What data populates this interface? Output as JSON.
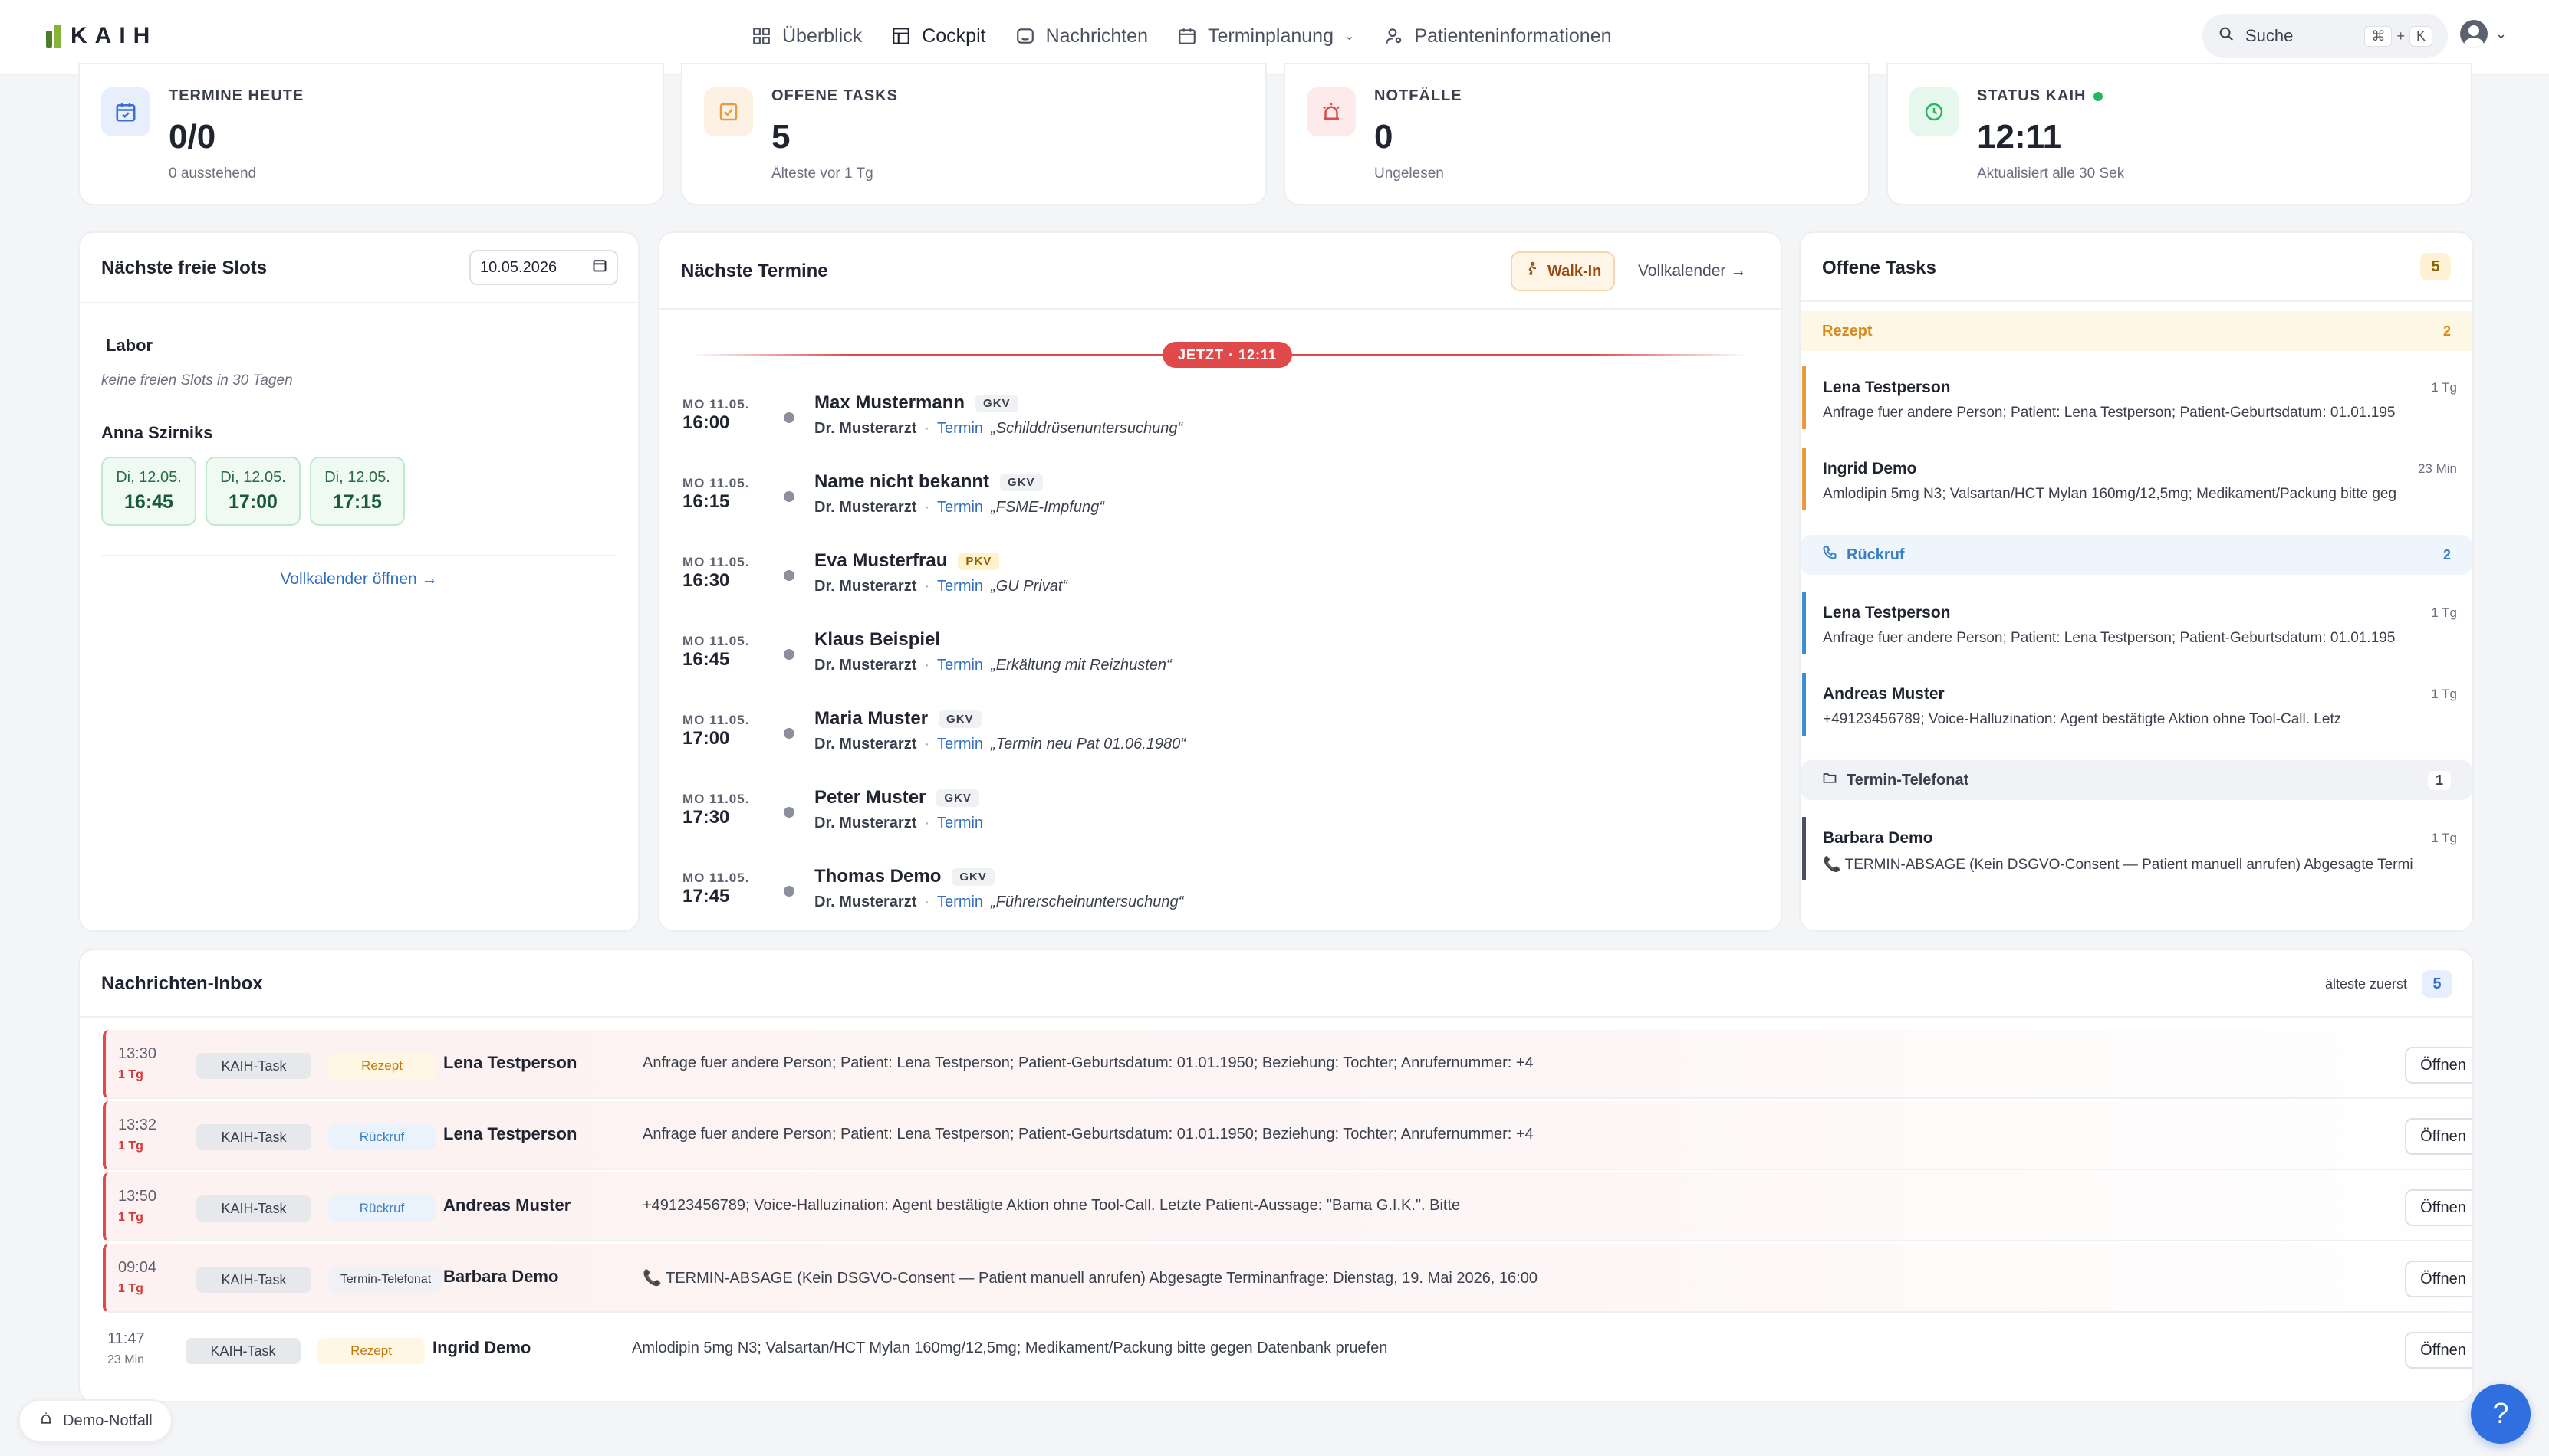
{
  "header": {
    "logo_text": "KAIH",
    "nav": [
      {
        "label": "Überblick",
        "icon": "grid-icon"
      },
      {
        "label": "Cockpit",
        "icon": "dashboard-icon"
      },
      {
        "label": "Nachrichten",
        "icon": "message-icon"
      },
      {
        "label": "Terminplanung",
        "icon": "calendar-icon"
      },
      {
        "label": "Patienteninformationen",
        "icon": "user-icon"
      }
    ],
    "search_placeholder": "Suche",
    "search_kbd": [
      "⌘",
      "+",
      "K"
    ]
  },
  "stats": [
    {
      "label": "TERMINE HEUTE",
      "value": "0/0",
      "sub": "0 ausstehend",
      "icon": "calendar-check-icon",
      "color": "#3a6fd8"
    },
    {
      "label": "OFFENE TASKS",
      "value": "5",
      "sub": "Älteste vor 1 Tg",
      "icon": "checkbox-icon",
      "color": "#e89a3c"
    },
    {
      "label": "NOTFÄLLE",
      "value": "0",
      "sub": "Ungelesen",
      "icon": "alarm-icon",
      "color": "#e04a4a"
    },
    {
      "label": "STATUS KAIH",
      "value": "12:11",
      "sub": "Aktualisiert alle 30 Sek",
      "icon": "clock-icon",
      "color": "#22b860"
    }
  ],
  "slots": {
    "title": "Nächste freie Slots",
    "date": "10.05.2026",
    "group1": {
      "name": "Labor",
      "empty": "keine freien Slots in 30 Tagen"
    },
    "group2": {
      "name": "Anna Szirniks",
      "chips": [
        {
          "day": "Di, 12.05.",
          "time": "16:45"
        },
        {
          "day": "Di, 12.05.",
          "time": "17:00"
        },
        {
          "day": "Di, 12.05.",
          "time": "17:15"
        }
      ]
    },
    "link": "Vollkalender öffnen →"
  },
  "termine": {
    "title": "Nächste Termine",
    "walkin": "Walk-In",
    "vollkalender": "Vollkalender →",
    "now": "JETZT · 12:11",
    "items": [
      {
        "date": "MO 11.05.",
        "time": "16:00",
        "name": "Max Mustermann",
        "ins": "GKV",
        "doc": "Dr. Musterarzt",
        "type": "Termin",
        "reason": "„Schilddrüsenuntersuchung“"
      },
      {
        "date": "MO 11.05.",
        "time": "16:15",
        "name": "Name nicht bekannt",
        "ins": "GKV",
        "doc": "Dr. Musterarzt",
        "type": "Termin",
        "reason": "„FSME-Impfung“"
      },
      {
        "date": "MO 11.05.",
        "time": "16:30",
        "name": "Eva Musterfrau",
        "ins": "PKV",
        "doc": "Dr. Musterarzt",
        "type": "Termin",
        "reason": "„GU Privat“"
      },
      {
        "date": "MO 11.05.",
        "time": "16:45",
        "name": "Klaus Beispiel",
        "ins": "",
        "doc": "Dr. Musterarzt",
        "type": "Termin",
        "reason": "„Erkältung mit Reizhusten“"
      },
      {
        "date": "MO 11.05.",
        "time": "17:00",
        "name": "Maria Muster",
        "ins": "GKV",
        "doc": "Dr. Musterarzt",
        "type": "Termin",
        "reason": "„Termin neu Pat 01.06.1980“"
      },
      {
        "date": "MO 11.05.",
        "time": "17:30",
        "name": "Peter Muster",
        "ins": "GKV",
        "doc": "Dr. Musterarzt",
        "type": "Termin",
        "reason": ""
      },
      {
        "date": "MO 11.05.",
        "time": "17:45",
        "name": "Thomas Demo",
        "ins": "GKV",
        "doc": "Dr. Musterarzt",
        "type": "Termin",
        "reason": "„Führerscheinuntersuchung“"
      }
    ]
  },
  "tasks": {
    "title": "Offene Tasks",
    "count": "5",
    "groups": [
      {
        "label": "Rezept",
        "count": "2",
        "items": [
          {
            "name": "Lena Testperson",
            "age": "1 Tg",
            "desc": "Anfrage fuer andere Person; Patient: Lena Testperson; Patient-Geburtsdatum: 01.01.195"
          },
          {
            "name": "Ingrid Demo",
            "age": "23 Min",
            "desc": "Amlodipin 5mg N3; Valsartan/HCT Mylan 160mg/12,5mg; Medikament/Packung bitte geg"
          }
        ]
      },
      {
        "label": "Rückruf",
        "count": "2",
        "items": [
          {
            "name": "Lena Testperson",
            "age": "1 Tg",
            "desc": "Anfrage fuer andere Person; Patient: Lena Testperson; Patient-Geburtsdatum: 01.01.195"
          },
          {
            "name": "Andreas Muster",
            "age": "1 Tg",
            "desc": "+49123456789; Voice-Halluzination: Agent bestätigte Aktion ohne Tool-Call. Letz"
          }
        ]
      },
      {
        "label": "Termin-Telefonat",
        "count": "1",
        "items": [
          {
            "name": "Barbara Demo",
            "age": "1 Tg",
            "desc": "📞 TERMIN-ABSAGE (Kein DSGVO-Consent — Patient manuell anrufen) Abgesagte Termi"
          }
        ]
      }
    ]
  },
  "inbox": {
    "title": "Nachrichten-Inbox",
    "sort": "älteste zuerst",
    "count": "5",
    "open_label": "Öffnen",
    "rows": [
      {
        "time": "13:30",
        "age": "1 Tg",
        "source": "KAIH-Task",
        "cat": "Rezept",
        "name": "Lena Testperson",
        "msg": "Anfrage fuer andere Person; Patient: Lena Testperson; Patient-Geburtsdatum: 01.01.1950; Beziehung: Tochter; Anrufernummer: +4"
      },
      {
        "time": "13:32",
        "age": "1 Tg",
        "source": "KAIH-Task",
        "cat": "Rückruf",
        "name": "Lena Testperson",
        "msg": "Anfrage fuer andere Person; Patient: Lena Testperson; Patient-Geburtsdatum: 01.01.1950; Beziehung: Tochter; Anrufernummer: +4"
      },
      {
        "time": "13:50",
        "age": "1 Tg",
        "source": "KAIH-Task",
        "cat": "Rückruf",
        "name": "Andreas Muster",
        "msg": "+49123456789; Voice-Halluzination: Agent bestätigte Aktion ohne Tool-Call. Letzte Patient-Aussage: \"Bama G.I.K.\". Bitte"
      },
      {
        "time": "09:04",
        "age": "1 Tg",
        "source": "KAIH-Task",
        "cat": "Termin-Telefonat",
        "name": "Barbara Demo",
        "msg": "📞 TERMIN-ABSAGE (Kein DSGVO-Consent — Patient manuell anrufen) Abgesagte Terminanfrage: Dienstag, 19. Mai 2026, 16:00"
      },
      {
        "time": "11:47",
        "age": "23 Min",
        "source": "KAIH-Task",
        "cat": "Rezept",
        "name": "Ingrid Demo",
        "msg": "Amlodipin 5mg N3; Valsartan/HCT Mylan 160mg/12,5mg; Medikament/Packung bitte gegen Datenbank pruefen"
      }
    ]
  },
  "footer": {
    "demo": "Demo-Notfall",
    "help": "?"
  }
}
